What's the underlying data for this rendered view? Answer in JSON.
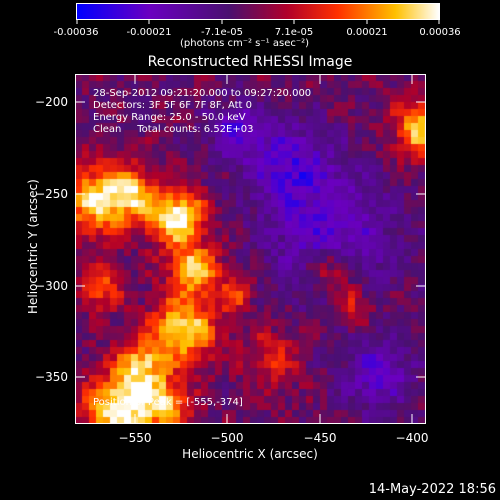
{
  "colorbar": {
    "tick_labels": [
      "-0.00036",
      "-0.00021",
      "-7.1e-05",
      "7.1e-05",
      "0.00021",
      "0.00036"
    ],
    "units_label": "(photons cm⁻² s⁻¹ asec⁻²)",
    "colors": [
      "#0000ff",
      "#6a00c0",
      "#4a1070",
      "#b0002a",
      "#ff3000",
      "#ffc000",
      "#ffffff"
    ]
  },
  "title": "Reconstructed RHESSI Image",
  "annotations": {
    "line1": "28-Sep-2012 09:21:20.000 to 09:27:20.000",
    "line2": "Detectors: 3F 5F 6F 7F 8F, Att 0",
    "line3": "Energy Range: 25.0 - 50.0 keV",
    "line4": "Clean     Total counts: 6.52E+03",
    "peak": "Position of Peak = [-555,-374]"
  },
  "axes": {
    "xlabel": "Heliocentric X (arcsec)",
    "ylabel": "Heliocentric Y (arcsec)",
    "x_ticks": [
      "−550",
      "−500",
      "−450",
      "−400"
    ],
    "y_ticks": [
      "−200",
      "−250",
      "−300",
      "−350"
    ],
    "x_range": [
      -580,
      -390
    ],
    "y_range": [
      -375,
      -185
    ]
  },
  "timestamp": "14-May-2022 18:56"
}
